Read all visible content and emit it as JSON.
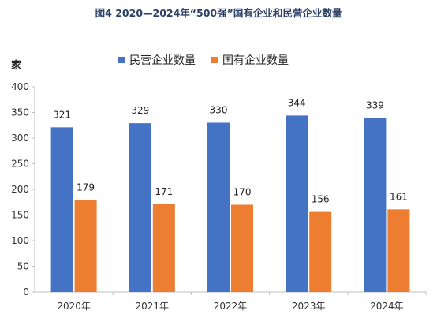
{
  "title": "图4 2020—2024年“500强”国有企业和民营企业数量",
  "unit": "家",
  "colors": {
    "series1": "#4472c4",
    "series2": "#ed7d31"
  },
  "chart_data": {
    "type": "bar",
    "title": "图4 2020—2024年“500强”国有企业和民营企业数量",
    "categories": [
      "2020年",
      "2021年",
      "2022年",
      "2023年",
      "2024年"
    ],
    "series": [
      {
        "name": "民营企业数量",
        "values": [
          321,
          329,
          330,
          344,
          339
        ]
      },
      {
        "name": "国有企业数量",
        "values": [
          179,
          171,
          170,
          156,
          161
        ]
      }
    ],
    "xlabel": "",
    "ylabel": "家",
    "ylim": [
      0,
      400
    ],
    "yticks": [
      0,
      50,
      100,
      150,
      200,
      250,
      300,
      350,
      400
    ],
    "grid": false,
    "legend": "top"
  }
}
